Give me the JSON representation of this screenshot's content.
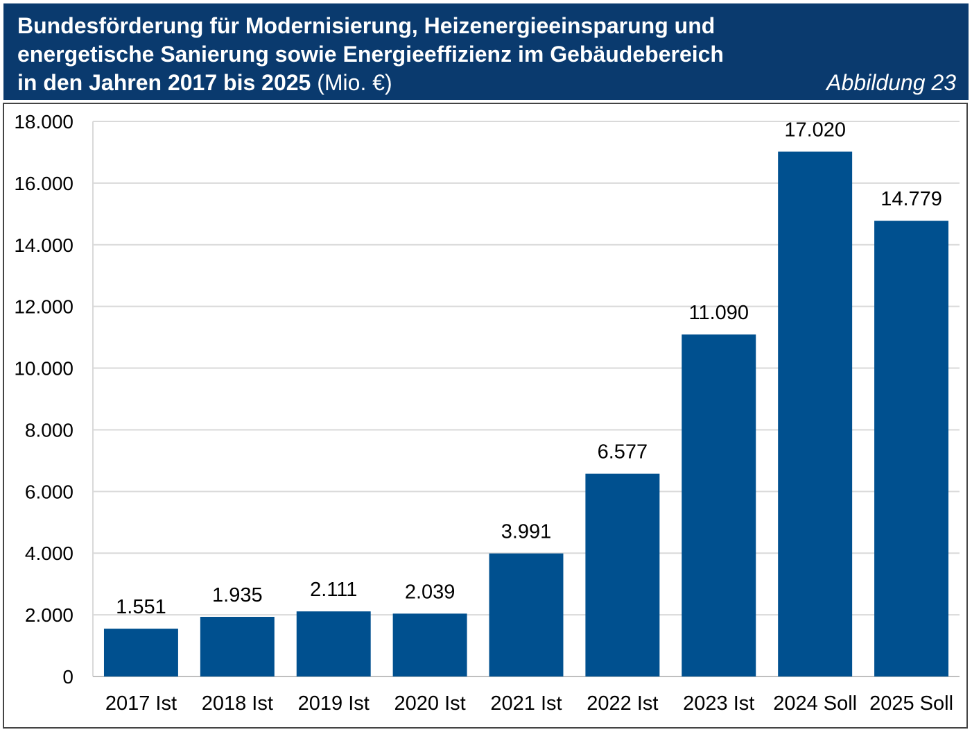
{
  "header": {
    "title_line1": "Bundesförderung für Modernisierung, Heizenergieeinsparung und",
    "title_line2": "energetische Sanierung sowie Energieeffizienz im Gebäudebereich",
    "title_line3": "in den Jahren 2017 bis 2025",
    "unit": "(Mio. €)",
    "figure_label": "Abbildung 23"
  },
  "colors": {
    "header_background": "#0a3a6e",
    "bar": "#00508f",
    "grid": "#d9d9d9"
  },
  "chart_data": {
    "type": "bar",
    "title": "Bundesförderung für Modernisierung, Heizenergieeinsparung und energetische Sanierung sowie Energieeffizienz im Gebäudebereich in den Jahren 2017 bis 2025",
    "ylabel": "",
    "xlabel": "",
    "categories": [
      "2017 Ist",
      "2018 Ist",
      "2019 Ist",
      "2020 Ist",
      "2021 Ist",
      "2022 Ist",
      "2023 Ist",
      "2024 Soll",
      "2025 Soll"
    ],
    "values": [
      1551,
      1935,
      2111,
      2039,
      3991,
      6577,
      11090,
      17020,
      14779
    ],
    "value_labels": [
      "1.551",
      "1.935",
      "2.111",
      "2.039",
      "3.991",
      "6.577",
      "11.090",
      "17.020",
      "14.779"
    ],
    "ylim": [
      0,
      18000
    ],
    "yticks": [
      0,
      2000,
      4000,
      6000,
      8000,
      10000,
      12000,
      14000,
      16000,
      18000
    ],
    "ytick_labels": [
      "0",
      "2.000",
      "4.000",
      "6.000",
      "8.000",
      "10.000",
      "12.000",
      "14.000",
      "16.000",
      "18.000"
    ],
    "grid": true,
    "legend": "none"
  }
}
